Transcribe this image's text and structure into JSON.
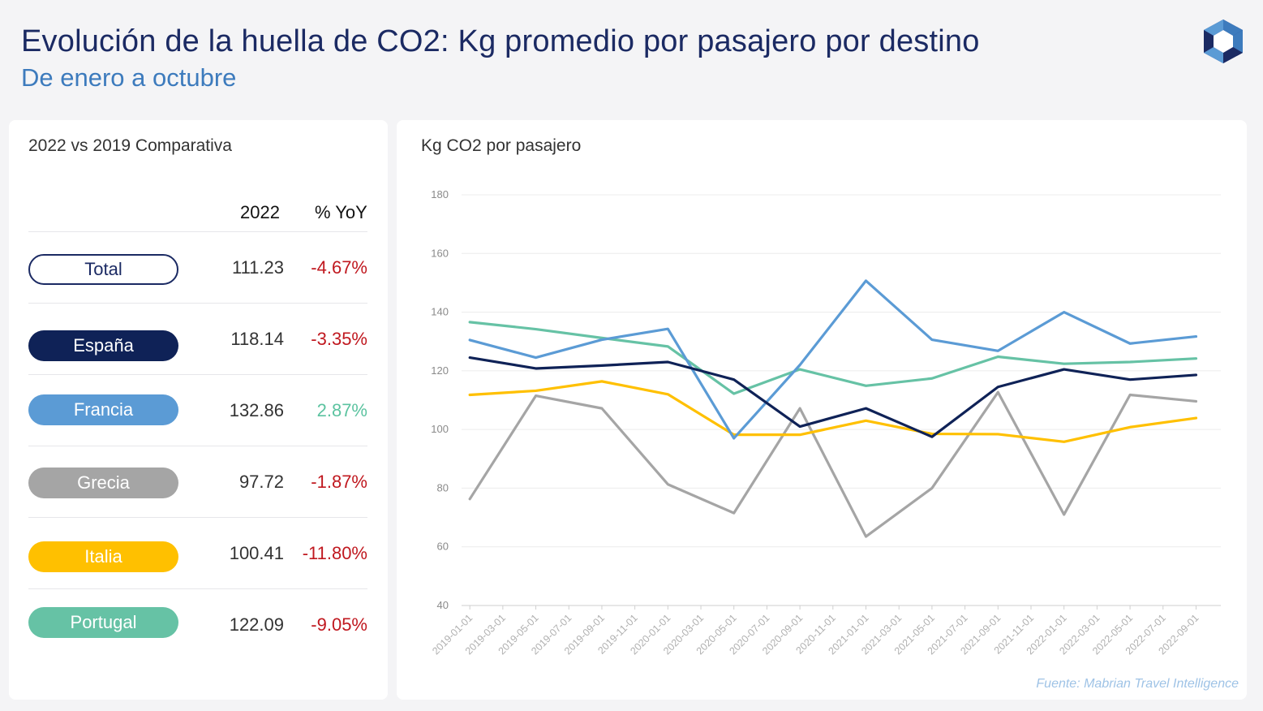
{
  "header": {
    "title": "Evolución de la huella de CO2: Kg promedio por pasajero por destino",
    "subtitle": "De enero a octubre",
    "logo_icon": "hexagon-logo-icon"
  },
  "comparison": {
    "title": "2022 vs 2019 Comparativa",
    "col_2022": "2022",
    "col_yoy": "% YoY",
    "rows": [
      {
        "label": "Total",
        "value": "111.23",
        "yoy": "-4.67%",
        "color": "#ffffff",
        "positive": false
      },
      {
        "label": "España",
        "value": "118.14",
        "yoy": "-3.35%",
        "color": "#0f2257",
        "positive": false
      },
      {
        "label": "Francia",
        "value": "132.86",
        "yoy": "2.87%",
        "color": "#5b9bd5",
        "positive": true
      },
      {
        "label": "Grecia",
        "value": "97.72",
        "yoy": "-1.87%",
        "color": "#a5a5a5",
        "positive": false
      },
      {
        "label": "Italia",
        "value": "100.41",
        "yoy": "-11.80%",
        "color": "#ffc000",
        "positive": false
      },
      {
        "label": "Portugal",
        "value": "122.09",
        "yoy": "-9.05%",
        "color": "#66c2a5",
        "positive": false
      }
    ]
  },
  "chart_panel": {
    "ylabel": "Kg CO2 por pasajero",
    "source": "Fuente: Mabrian Travel Intelligence"
  },
  "chart_data": {
    "type": "line",
    "ylabel": "Kg CO2 por pasajero",
    "ylim": [
      40,
      180
    ],
    "yticks": [
      40,
      60,
      80,
      100,
      120,
      140,
      160,
      180
    ],
    "grid": true,
    "x": [
      "2019-01-01",
      "2019-03-01",
      "2019-05-01",
      "2019-07-01",
      "2019-09-01",
      "2019-11-01",
      "2020-01-01",
      "2020-03-01",
      "2020-05-01",
      "2020-07-01",
      "2020-09-01",
      "2020-11-01",
      "2021-01-01",
      "2021-03-01",
      "2021-05-01",
      "2021-07-01",
      "2021-09-01",
      "2021-11-01",
      "2022-01-01",
      "2022-03-01",
      "2022-05-01",
      "2022-07-01",
      "2022-09-01"
    ],
    "series": [
      {
        "name": "España",
        "color": "#0f2257",
        "points": [
          [
            "2019-01-01",
            124.5
          ],
          [
            "2019-05-01",
            120.8
          ],
          [
            "2019-09-01",
            121.8
          ],
          [
            "2020-01-01",
            123.0
          ],
          [
            "2020-05-01",
            117.0
          ],
          [
            "2020-09-01",
            101.0
          ],
          [
            "2021-01-01",
            107.2
          ],
          [
            "2021-05-01",
            97.5
          ],
          [
            "2021-09-01",
            114.5
          ],
          [
            "2022-01-01",
            120.5
          ],
          [
            "2022-05-01",
            117.0
          ],
          [
            "2022-09-01",
            118.6
          ]
        ]
      },
      {
        "name": "Francia",
        "color": "#5b9bd5",
        "points": [
          [
            "2019-01-01",
            130.5
          ],
          [
            "2019-05-01",
            124.5
          ],
          [
            "2019-09-01",
            130.6
          ],
          [
            "2020-01-01",
            134.3
          ],
          [
            "2020-05-01",
            97.0
          ],
          [
            "2020-09-01",
            122.0
          ],
          [
            "2021-01-01",
            150.7
          ],
          [
            "2021-05-01",
            130.6
          ],
          [
            "2021-09-01",
            126.8
          ],
          [
            "2022-01-01",
            140.0
          ],
          [
            "2022-05-01",
            129.3
          ],
          [
            "2022-09-01",
            131.7
          ]
        ]
      },
      {
        "name": "Grecia",
        "color": "#a5a5a5",
        "points": [
          [
            "2019-01-01",
            76.3
          ],
          [
            "2019-05-01",
            111.5
          ],
          [
            "2019-09-01",
            107.2
          ],
          [
            "2020-01-01",
            81.3
          ],
          [
            "2020-05-01",
            71.5
          ],
          [
            "2020-09-01",
            107.2
          ],
          [
            "2021-01-01",
            63.5
          ],
          [
            "2021-05-01",
            80.0
          ],
          [
            "2021-09-01",
            112.7
          ],
          [
            "2022-01-01",
            71.0
          ],
          [
            "2022-05-01",
            111.8
          ],
          [
            "2022-09-01",
            109.6
          ]
        ]
      },
      {
        "name": "Italia",
        "color": "#ffc000",
        "points": [
          [
            "2019-01-01",
            111.8
          ],
          [
            "2019-05-01",
            113.2
          ],
          [
            "2019-09-01",
            116.4
          ],
          [
            "2020-01-01",
            112.0
          ],
          [
            "2020-05-01",
            98.2
          ],
          [
            "2020-09-01",
            98.2
          ],
          [
            "2021-01-01",
            103.0
          ],
          [
            "2021-05-01",
            98.5
          ],
          [
            "2021-09-01",
            98.4
          ],
          [
            "2022-01-01",
            95.8
          ],
          [
            "2022-05-01",
            100.8
          ],
          [
            "2022-09-01",
            103.9
          ]
        ]
      },
      {
        "name": "Portugal",
        "color": "#66c2a5",
        "points": [
          [
            "2019-01-01",
            136.6
          ],
          [
            "2019-05-01",
            134.2
          ],
          [
            "2019-09-01",
            131.2
          ],
          [
            "2020-01-01",
            128.3
          ],
          [
            "2020-05-01",
            112.2
          ],
          [
            "2020-09-01",
            120.5
          ],
          [
            "2021-01-01",
            114.9
          ],
          [
            "2021-05-01",
            117.4
          ],
          [
            "2021-09-01",
            124.8
          ],
          [
            "2022-01-01",
            122.4
          ],
          [
            "2022-05-01",
            123.0
          ],
          [
            "2022-09-01",
            124.2
          ]
        ]
      }
    ]
  }
}
